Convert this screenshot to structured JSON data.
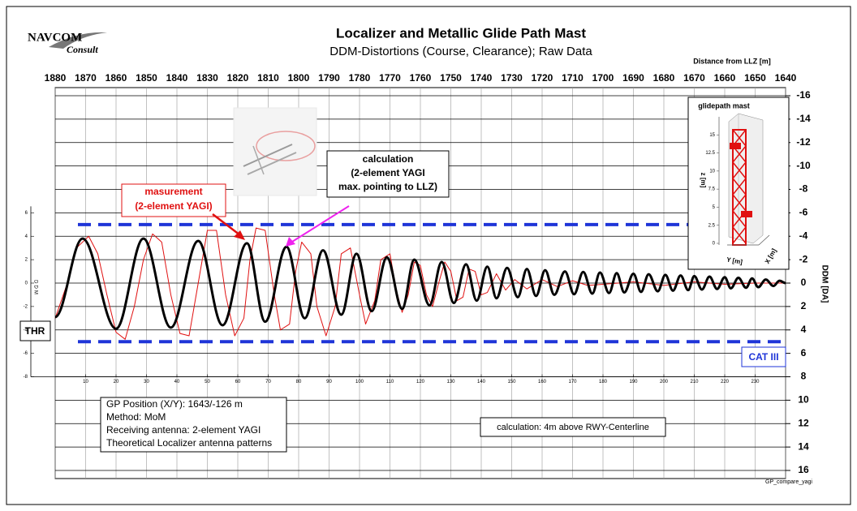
{
  "chart_data": {
    "type": "line",
    "logo": {
      "name": "NAVCOM",
      "sub": "Consult"
    },
    "title": "Localizer and Metallic Glide Path Mast",
    "subtitle": "DDM-Distortions (Course, Clearance); Raw Data",
    "xlabel": "Distance from LLZ [m]",
    "ylabel": "DDM [DA]",
    "xlim": [
      1880,
      1640
    ],
    "xticks": [
      1880,
      1870,
      1860,
      1850,
      1840,
      1830,
      1820,
      1810,
      1800,
      1790,
      1780,
      1770,
      1760,
      1750,
      1740,
      1730,
      1720,
      1710,
      1700,
      1690,
      1680,
      1670,
      1660,
      1650,
      1640
    ],
    "ylim": [
      -16,
      16
    ],
    "yticks": [
      -16,
      -14,
      -12,
      -10,
      -8,
      -6,
      -4,
      -2,
      0,
      2,
      4,
      6,
      8,
      10,
      12,
      14,
      16
    ],
    "x2lim": [
      0,
      240
    ],
    "x2ticks": [
      10,
      20,
      30,
      40,
      50,
      60,
      70,
      80,
      90,
      100,
      110,
      120,
      130,
      140,
      150,
      160,
      170,
      180,
      190,
      200,
      210,
      220,
      230
    ],
    "y2lim": [
      16,
      -16
    ],
    "y2ticks": [
      6,
      4,
      2,
      0,
      -2,
      -4,
      -6,
      -8
    ],
    "y2label": "DDM",
    "grid": true,
    "limits": [
      -5,
      5
    ],
    "limit_color": "#1f35d8",
    "series": [
      {
        "name": "calculation",
        "color": "#000000",
        "extra": [
          "(2-element YAGI",
          "max. pointing to LLZ)"
        ],
        "x": [
          1880,
          1871,
          1860,
          1851,
          1842,
          1833,
          1825,
          1817,
          1811,
          1804,
          1798,
          1792,
          1786,
          1781,
          1776,
          1771,
          1766,
          1762,
          1757,
          1753,
          1749,
          1745,
          1741.5,
          1738,
          1735,
          1731.5,
          1728,
          1725,
          1722,
          1719,
          1716,
          1712.5,
          1709.5,
          1706.5,
          1703.5,
          1701,
          1698,
          1695.5,
          1693,
          1690,
          1687.5,
          1685,
          1682,
          1679.5,
          1677,
          1674.5,
          1672,
          1670,
          1667.5,
          1665,
          1662.5,
          1660,
          1658,
          1655.5,
          1653,
          1651,
          1649,
          1646.5,
          1644,
          1642,
          1640
        ],
        "values": [
          2.9,
          -3.8,
          3.9,
          -3.8,
          3.8,
          -3.6,
          3.6,
          -3.4,
          3.3,
          -3.1,
          3.0,
          -2.8,
          2.7,
          -2.5,
          2.4,
          -2.2,
          2.2,
          -2.0,
          1.9,
          -1.8,
          1.7,
          -1.6,
          1.5,
          -1.4,
          1.3,
          -1.3,
          1.2,
          -1.2,
          1.1,
          -1.1,
          1.0,
          -1.0,
          0.95,
          -0.95,
          0.9,
          -0.9,
          0.85,
          -0.85,
          0.8,
          -0.8,
          0.75,
          -0.75,
          0.7,
          -0.7,
          0.65,
          -0.65,
          0.6,
          -0.6,
          0.55,
          -0.55,
          0.5,
          -0.5,
          0.45,
          -0.45,
          0.4,
          -0.4,
          0.35,
          -0.3,
          0.25,
          -0.2,
          0
        ]
      },
      {
        "name": "masurement",
        "color": "#e01010",
        "extra": [
          "(2-element YAGI)"
        ],
        "x": [
          1880,
          1876,
          1873,
          1869,
          1866,
          1863,
          1860,
          1857,
          1854,
          1851,
          1848,
          1845,
          1842,
          1839,
          1836,
          1833,
          1830,
          1827,
          1824,
          1821,
          1818,
          1816,
          1814,
          1811,
          1808,
          1806,
          1803,
          1801,
          1799,
          1796,
          1794,
          1791,
          1788,
          1786,
          1783,
          1780,
          1778,
          1775,
          1773,
          1770,
          1768,
          1766,
          1764,
          1762,
          1760,
          1758,
          1756,
          1754,
          1752,
          1750,
          1748,
          1746,
          1744,
          1742,
          1740,
          1738,
          1735,
          1732,
          1729,
          1725,
          1720,
          1715,
          1710,
          1705,
          1700,
          1690,
          1680,
          1670,
          1660,
          1650,
          1640
        ],
        "values": [
          3.0,
          0,
          -3.0,
          -4.0,
          -2.5,
          1.0,
          4.2,
          4.8,
          2.0,
          -2.0,
          -4.2,
          -3.5,
          1.0,
          4.3,
          4.5,
          0,
          -4.5,
          -4.5,
          1.0,
          4.5,
          3.0,
          -2.0,
          -4.7,
          -4.5,
          1.0,
          4.0,
          3.5,
          -1.0,
          -3.5,
          -2.5,
          2.0,
          4.5,
          2.0,
          -2.5,
          -3.0,
          1.0,
          3.5,
          1.5,
          -2.0,
          -2.5,
          0.5,
          2.5,
          1.0,
          -1.8,
          -1.5,
          1.0,
          2.0,
          0,
          -1.8,
          -1.0,
          1.5,
          1.2,
          -1.2,
          -1.0,
          1.0,
          0.8,
          -0.8,
          0.6,
          -0.3,
          0.5,
          -0.3,
          0.3,
          -0.2,
          0.2,
          0.1,
          -0.1,
          0.2,
          -0.1,
          0.1,
          0,
          0
        ]
      }
    ],
    "annotations": {
      "thr": "THR",
      "cat": "CAT III",
      "info": [
        "GP Position (X/Y): 1643/-126 m",
        "Method: MoM",
        "Receiving antenna: 2-element YAGI",
        "Theoretical Localizer antenna patterns"
      ],
      "height": "calculation: 4m above RWY-Centerline",
      "file": "GP_compare_yagi"
    },
    "inset": {
      "title": "glidepath mast",
      "zlabel": "z [m]",
      "ylabel": "Y [m]",
      "xlabel": "X [m]",
      "zlim": [
        0,
        17.5
      ],
      "zticks": [
        0,
        2.5,
        5,
        7.5,
        10,
        12.5,
        15
      ]
    }
  }
}
